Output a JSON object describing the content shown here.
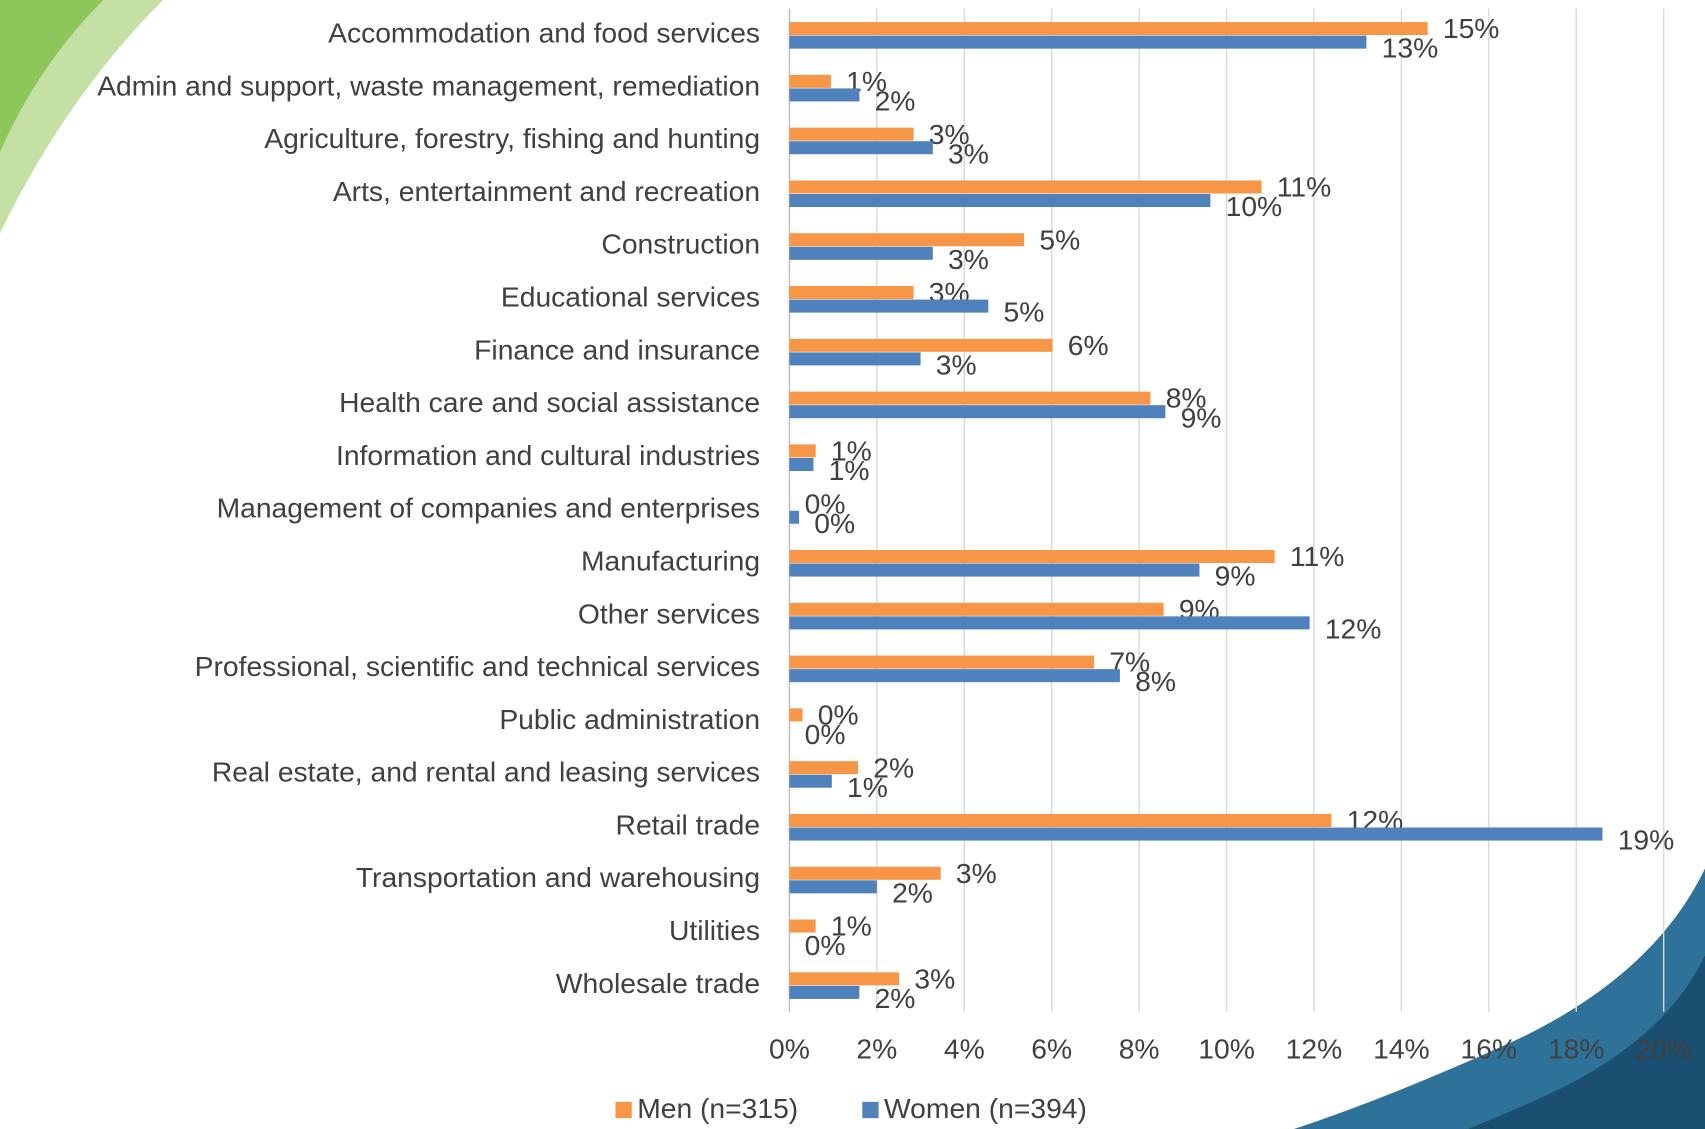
{
  "chart_data": {
    "type": "hbar",
    "categories": [
      "Accommodation and food services",
      "Admin and support, waste management, remediation",
      "Agriculture, forestry, fishing and hunting",
      "Arts, entertainment and recreation",
      "Construction",
      "Educational services",
      "Finance and insurance",
      "Health care and social assistance",
      "Information and cultural industries",
      "Management of companies and enterprises",
      "Manufacturing",
      "Other services",
      "Professional, scientific and technical services",
      "Public administration",
      "Real estate, and rental and leasing services",
      "Retail trade",
      "Transportation and warehousing",
      "Utilities",
      "Wholesale trade"
    ],
    "series": [
      {
        "name": "Men (n=315)",
        "color": "#f79646",
        "values": [
          14.6,
          0.95,
          2.84,
          10.8,
          5.37,
          2.84,
          6.02,
          8.26,
          0.6,
          0,
          11.1,
          8.56,
          6.97,
          0.3,
          1.57,
          12.4,
          3.46,
          0.6,
          2.51
        ],
        "value_labels": [
          "15%",
          "1%",
          "3%",
          "11%",
          "5%",
          "3%",
          "6%",
          "8%",
          "1%",
          "0%",
          "11%",
          "9%",
          "7%",
          "0%",
          "2%",
          "12%",
          "3%",
          "1%",
          "3%"
        ]
      },
      {
        "name": "Women (n=394)",
        "color": "#4f81bd",
        "values": [
          13.2,
          1.6,
          3.28,
          9.63,
          3.28,
          4.55,
          3.0,
          8.6,
          0.55,
          0.22,
          9.38,
          11.9,
          7.56,
          0,
          0.97,
          18.6,
          2.0,
          0,
          1.6
        ],
        "value_labels": [
          "13%",
          "2%",
          "3%",
          "10%",
          "3%",
          "5%",
          "3%",
          "9%",
          "1%",
          "0%",
          "9%",
          "12%",
          "8%",
          "0%",
          "1%",
          "19%",
          "2%",
          "0%",
          "2%"
        ]
      }
    ],
    "xlim": [
      0,
      20
    ],
    "xticks": [
      {
        "value": 0,
        "label": "0%"
      },
      {
        "value": 2,
        "label": "2%"
      },
      {
        "value": 4,
        "label": "4%"
      },
      {
        "value": 6,
        "label": "6%"
      },
      {
        "value": 8,
        "label": "8%"
      },
      {
        "value": 10,
        "label": "10%"
      },
      {
        "value": 12,
        "label": "12%"
      },
      {
        "value": 14,
        "label": "14%"
      },
      {
        "value": 16,
        "label": "16%"
      },
      {
        "value": 18,
        "label": "18%"
      },
      {
        "value": 20,
        "label": "20%"
      }
    ],
    "grid": true,
    "legend": "bottom"
  }
}
